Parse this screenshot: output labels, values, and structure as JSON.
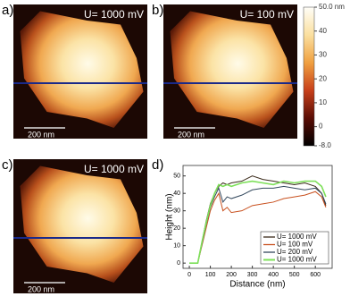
{
  "panels": [
    {
      "label": "a)",
      "caption": "U= 1000 mV",
      "scale_bar": "200 nm"
    },
    {
      "label": "b)",
      "caption": "U= 100 mV",
      "scale_bar": "200 nm"
    },
    {
      "label": "c)",
      "caption": "U= 1000 mV",
      "scale_bar": "200 nm"
    }
  ],
  "colorbar": {
    "lim": [
      -8,
      50
    ],
    "ticks": [
      {
        "value": 50,
        "label": "50.0 nm"
      },
      40,
      30,
      20,
      10,
      0,
      {
        "value": -8,
        "label": "-8.0"
      }
    ]
  },
  "chart_data": {
    "type": "line",
    "label": "d)",
    "x_label": "Distance (nm)",
    "y_label": "Height (nm)",
    "x": [
      0,
      40,
      60,
      80,
      100,
      120,
      140,
      160,
      180,
      200,
      250,
      300,
      350,
      400,
      450,
      500,
      550,
      600,
      630,
      650
    ],
    "series": [
      {
        "name": "U= 1000 mV",
        "color": "#3a2a1a",
        "values": [
          0,
          0,
          12,
          24,
          34,
          40,
          44,
          46,
          45,
          46,
          47,
          50,
          48,
          47,
          46,
          45,
          46,
          44,
          40,
          33
        ]
      },
      {
        "name": "U= 100 mV",
        "color": "#c8501e",
        "values": [
          0,
          0,
          10,
          20,
          30,
          36,
          40,
          30,
          32,
          29,
          30,
          33,
          34,
          35,
          37,
          38,
          39,
          41,
          38,
          32
        ]
      },
      {
        "name": "U= 200 mV",
        "color": "#34495e",
        "values": [
          0,
          0,
          11,
          22,
          32,
          38,
          43,
          35,
          38,
          37,
          39,
          42,
          43,
          43,
          44,
          43,
          42,
          43,
          40,
          34
        ]
      },
      {
        "name": "U= 1000 mV",
        "color": "#7ee05a",
        "values": [
          0,
          0,
          12,
          23,
          33,
          40,
          45,
          44,
          45,
          44,
          46,
          47,
          46,
          45,
          47,
          46,
          47,
          47,
          44,
          38
        ]
      }
    ],
    "xlim": [
      -30,
      680
    ],
    "ylim": [
      -3,
      56
    ],
    "xticks": [
      0,
      100,
      200,
      300,
      400,
      500,
      600
    ],
    "yticks": [
      0,
      10,
      20,
      30,
      40,
      50
    ],
    "legend": "lower right"
  }
}
